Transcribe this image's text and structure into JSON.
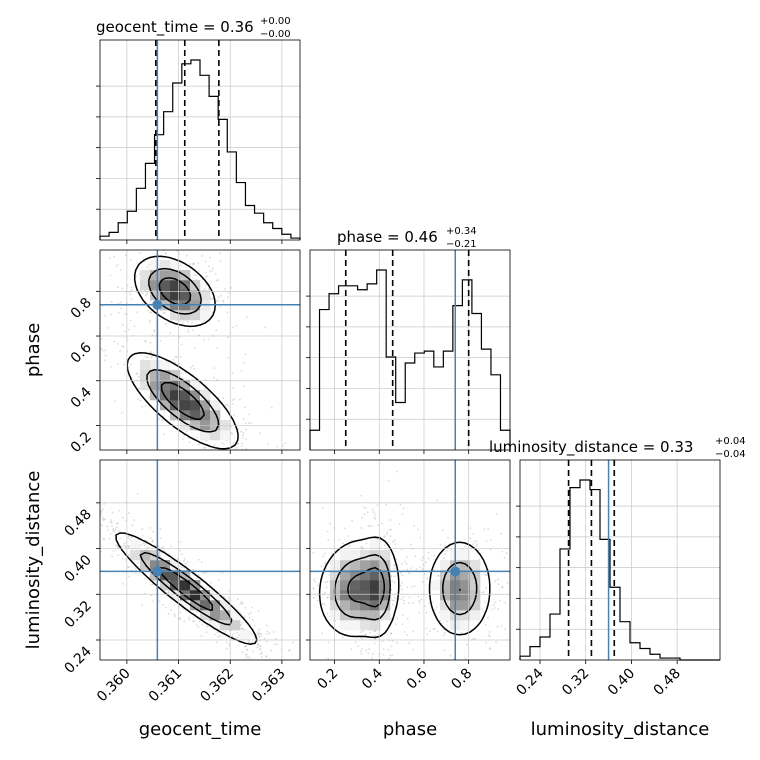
{
  "chart_data": {
    "type": "corner",
    "parameters": [
      "geocent_time",
      "phase",
      "luminosity_distance"
    ],
    "titles": [
      {
        "param": "geocent_time",
        "label": "geocent_time = 0.36",
        "plus": "+0.00",
        "minus": "−0.00"
      },
      {
        "param": "phase",
        "label": "phase = 0.46",
        "plus": "+0.34",
        "minus": "−0.21"
      },
      {
        "param": "luminosity_distance",
        "label": "luminosity_distance = 0.33",
        "plus": "+0.04",
        "minus": "−0.04"
      }
    ],
    "ranges": {
      "geocent_time": [
        0.35948,
        0.36335
      ],
      "phase": [
        0.09,
        0.985
      ],
      "luminosity_distance": [
        0.205,
        0.555
      ]
    },
    "ticks": {
      "geocent_time": {
        "values": [
          0.36,
          0.361,
          0.362,
          0.363
        ],
        "labels": [
          "0.360",
          "0.361",
          "0.362",
          "0.363"
        ]
      },
      "phase": {
        "values": [
          0.2,
          0.4,
          0.6,
          0.8
        ],
        "labels": [
          "0.2",
          "0.4",
          "0.6",
          "0.8"
        ]
      },
      "luminosity_distance": {
        "values": [
          0.24,
          0.32,
          0.4,
          0.48
        ],
        "labels": [
          "0.24",
          "0.32",
          "0.40",
          "0.48"
        ]
      }
    },
    "truths": {
      "geocent_time": 0.36059,
      "phase": 0.74,
      "luminosity_distance": 0.36
    },
    "quantiles": {
      "geocent_time": [
        0.36056,
        0.36112,
        0.36178
      ],
      "phase": [
        0.25,
        0.46,
        0.8
      ],
      "luminosity_distance": [
        0.29,
        0.33,
        0.37
      ]
    },
    "histograms": {
      "geocent_time": [
        2,
        4,
        9,
        15,
        27,
        40,
        55,
        67,
        82,
        92,
        94,
        86,
        75,
        63,
        46,
        30,
        18,
        14,
        9,
        6,
        3,
        1
      ],
      "phase": [
        10,
        71,
        79,
        83,
        83,
        81,
        84,
        91,
        47,
        24,
        44,
        49,
        50,
        42,
        50,
        73,
        86,
        69,
        51,
        38,
        10
      ],
      "luminosity_distance": [
        2,
        7,
        12,
        24,
        58,
        90,
        94,
        89,
        63,
        38,
        20,
        9,
        6,
        3,
        1,
        1,
        0,
        0,
        0,
        0
      ]
    },
    "contours_2d": {
      "phase_vs_geocent_time": [
        {
          "center": [
            0.36093,
            0.8
          ],
          "spread": [
            0.0004,
            0.08
          ],
          "corr": -0.4,
          "weight": 1.0
        },
        {
          "center": [
            0.36108,
            0.31
          ],
          "spread": [
            0.00055,
            0.11
          ],
          "corr": -0.75,
          "weight": 1.0
        }
      ],
      "luminosity_distance_vs_geocent_time": [
        {
          "center": [
            0.36115,
            0.33
          ],
          "spread": [
            0.0007,
            0.05
          ],
          "corr": -0.93,
          "weight": 1.0
        }
      ],
      "luminosity_distance_vs_phase": [
        {
          "center": [
            0.3,
            0.33
          ],
          "spread": [
            0.09,
            0.045
          ],
          "corr": 0.1,
          "weight": 1.0
        },
        {
          "center": [
            0.4,
            0.33
          ],
          "spread": [
            0.04,
            0.045
          ],
          "corr": 0.0,
          "weight": 0.6
        },
        {
          "center": [
            0.76,
            0.33
          ],
          "spread": [
            0.075,
            0.045
          ],
          "corr": 0.0,
          "weight": 0.9
        }
      ]
    },
    "colors": {
      "truth": "#4682b4",
      "hist": "#000000",
      "density": "#000000",
      "grid": "#c8c8c8"
    }
  }
}
